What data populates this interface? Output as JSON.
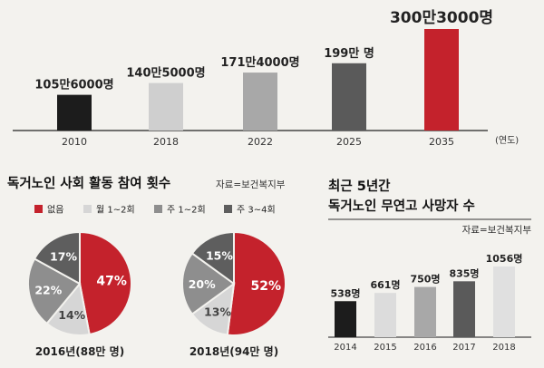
{
  "chart_data": [
    {
      "type": "bar",
      "categories": [
        "2010",
        "2018",
        "2022",
        "2025",
        "2035"
      ],
      "values": [
        1056000,
        1405000,
        1714000,
        1990000,
        3003000
      ],
      "labels": [
        "105만6000명",
        "140만5000명",
        "171만4000명",
        "199만 명",
        "300만3000명"
      ],
      "axis_unit": "(연도)",
      "colors": [
        "#1c1c1c",
        "#cfcfcf",
        "#a8a8a8",
        "#5a5a5a",
        "#c4222c"
      ],
      "ylim": [
        0,
        3100000
      ]
    },
    {
      "type": "pie",
      "title": "독거노인 사회 활동 참여 횟수",
      "source": "자료=보건복지부",
      "legend": [
        "없음",
        "월 1~2회",
        "주 1~2회",
        "주 3~4회"
      ],
      "colors": [
        "#c4222c",
        "#d6d6d6",
        "#8e8e8e",
        "#5e5e5e"
      ],
      "pies": [
        {
          "caption": "2016년(88만 명)",
          "values": [
            47,
            14,
            22,
            17
          ],
          "labels": [
            "47%",
            "14%",
            "22%",
            "17%"
          ]
        },
        {
          "caption": "2018년(94만 명)",
          "values": [
            52,
            13,
            20,
            15
          ],
          "labels": [
            "52%",
            "13%",
            "20%",
            "15%"
          ]
        }
      ]
    },
    {
      "type": "bar",
      "title_lines": [
        "최근 5년간",
        "독거노인 무연고 사망자 수"
      ],
      "source": "자료=보건복지부",
      "categories": [
        "2014",
        "2015",
        "2016",
        "2017",
        "2018"
      ],
      "values": [
        538,
        661,
        750,
        835,
        1056
      ],
      "labels": [
        "538명",
        "661명",
        "750명",
        "835명",
        "1056명"
      ],
      "colors": [
        "#1c1c1c",
        "#dcdcdc",
        "#a8a8a8",
        "#5a5a5a",
        "#e0e0e0"
      ],
      "ylim": [
        0,
        1100
      ]
    }
  ]
}
